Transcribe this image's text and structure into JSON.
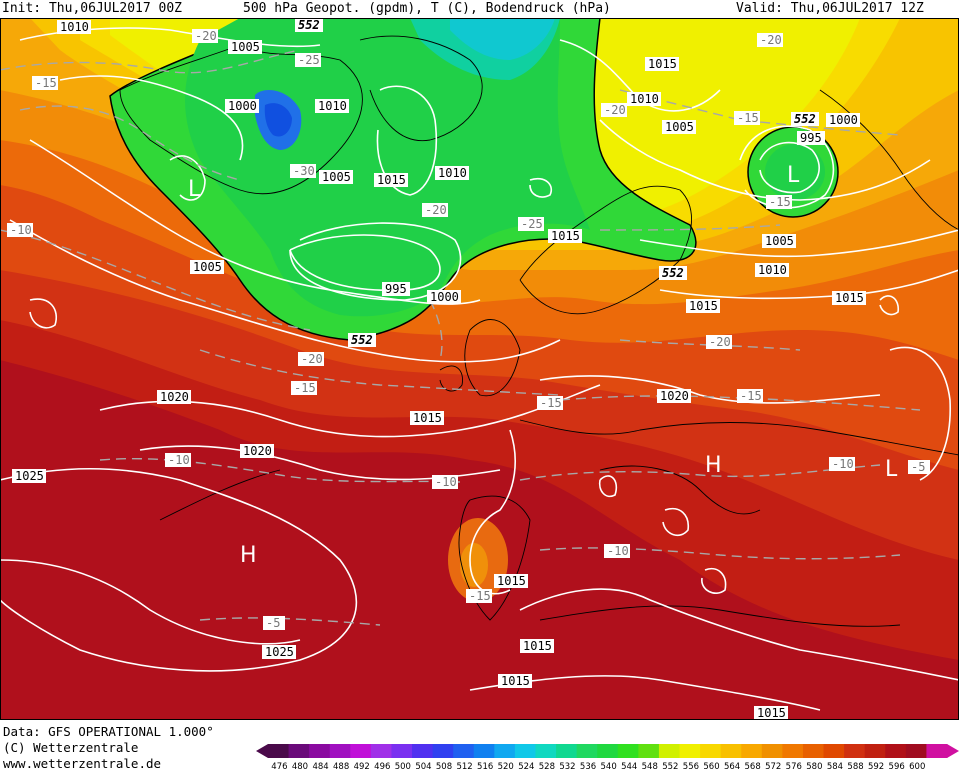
{
  "header": {
    "init": "Init: Thu,06JUL2017 00Z",
    "title": "500 hPa Geopot. (gpdm), T (C), Bodendruck (hPa)",
    "valid": "Valid: Thu,06JUL2017 12Z"
  },
  "footer": {
    "data_source": "Data: GFS OPERATIONAL 1.000°",
    "copyright": "(C) Wetterzentrale",
    "website": "www.wetterzentrale.de"
  },
  "legend": {
    "values": [
      "476",
      "480",
      "484",
      "488",
      "492",
      "496",
      "500",
      "504",
      "508",
      "512",
      "516",
      "520",
      "524",
      "528",
      "532",
      "536",
      "540",
      "544",
      "548",
      "552",
      "556",
      "560",
      "564",
      "568",
      "572",
      "576",
      "580",
      "584",
      "588",
      "592",
      "596",
      "600"
    ],
    "colors": [
      "#4a0a4a",
      "#6a0a7a",
      "#8a0aa0",
      "#a010c0",
      "#c010d8",
      "#a030e8",
      "#7a30f0",
      "#5030f0",
      "#3040f0",
      "#2060f0",
      "#1080f0",
      "#10a8f0",
      "#10c8e8",
      "#10d8c0",
      "#10d890",
      "#20d860",
      "#20d840",
      "#30e020",
      "#60e010",
      "#d0f000",
      "#f0f000",
      "#f8d800",
      "#f8c000",
      "#f8a800",
      "#f09000",
      "#f07800",
      "#e86000",
      "#e04800",
      "#d03010",
      "#c02010",
      "#b01018",
      "#a00c20",
      "#d010a0"
    ]
  },
  "map": {
    "isobars": [
      "1010",
      "1005",
      "1000",
      "1010",
      "1015",
      "1010",
      "1005",
      "995",
      "1000",
      "1005",
      "1015",
      "1010",
      "1005",
      "1000",
      "995",
      "1005",
      "1010",
      "1015",
      "1015",
      "1020",
      "1020",
      "1020",
      "1025",
      "1015",
      "1015",
      "1015",
      "1015",
      "1025",
      "1015",
      "1015"
    ],
    "temperatures": [
      "-20",
      "-25",
      "-15",
      "-30",
      "-20",
      "-25",
      "-20",
      "-15",
      "-20",
      "-15",
      "-10",
      "-20",
      "-15",
      "-15",
      "-20",
      "-15",
      "-10",
      "-10",
      "-15",
      "-10",
      "-5",
      "-10",
      "-5"
    ],
    "geopotential": [
      "552",
      "552",
      "552",
      "552"
    ],
    "pressure_centers": [
      "L",
      "L",
      "H",
      "H",
      "L"
    ]
  }
}
